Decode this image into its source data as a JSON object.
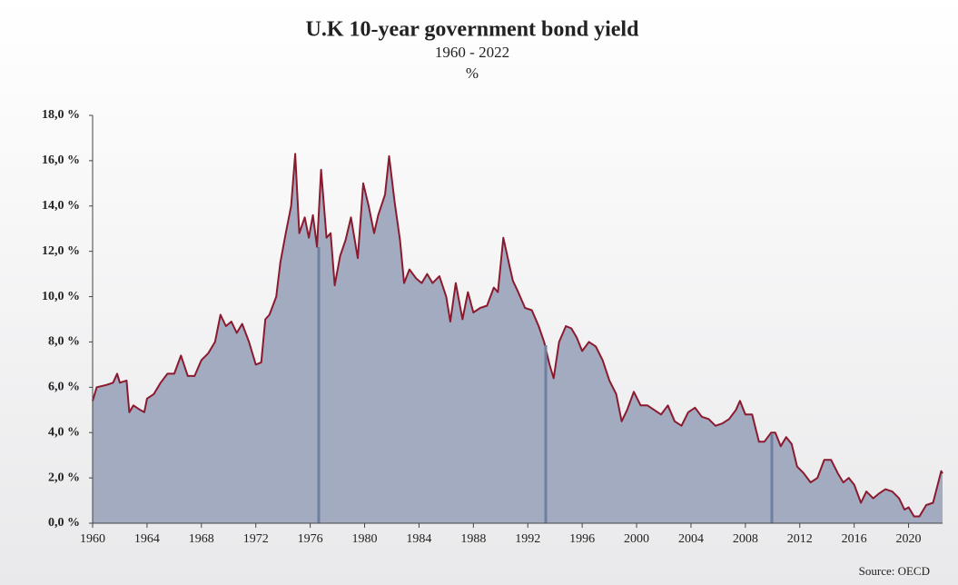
{
  "chart_data": {
    "type": "area",
    "title": "U.K 10-year government bond yield",
    "subtitle": "1960 - 2022",
    "unit": "%",
    "source": "Source: OECD",
    "color": "#8b1a2e",
    "fill": "#a2abc0",
    "x": [
      1960.0,
      1960.3,
      1961.0,
      1961.5,
      1961.8,
      1962.0,
      1962.5,
      1962.7,
      1963.0,
      1963.5,
      1963.8,
      1964.0,
      1964.5,
      1965.0,
      1965.5,
      1966.0,
      1966.5,
      1967.0,
      1967.5,
      1968.0,
      1968.5,
      1969.0,
      1969.4,
      1969.8,
      1970.2,
      1970.6,
      1971.0,
      1971.5,
      1972.0,
      1972.4,
      1972.7,
      1973.0,
      1973.5,
      1973.8,
      1974.2,
      1974.6,
      1974.9,
      1975.2,
      1975.6,
      1975.9,
      1976.2,
      1976.5,
      1976.8,
      1977.2,
      1977.5,
      1977.8,
      1978.2,
      1978.6,
      1979.0,
      1979.5,
      1979.9,
      1980.3,
      1980.7,
      1981.0,
      1981.5,
      1981.8,
      1982.2,
      1982.6,
      1982.9,
      1983.3,
      1983.8,
      1984.2,
      1984.6,
      1985.0,
      1985.5,
      1986.0,
      1986.3,
      1986.7,
      1987.2,
      1987.6,
      1988.0,
      1988.5,
      1989.0,
      1989.5,
      1989.8,
      1990.2,
      1990.6,
      1990.9,
      1991.3,
      1991.8,
      1992.3,
      1992.8,
      1993.2,
      1993.6,
      1993.9,
      1994.3,
      1994.8,
      1995.2,
      1995.6,
      1996.0,
      1996.5,
      1997.0,
      1997.5,
      1998.0,
      1998.5,
      1998.9,
      1999.3,
      1999.8,
      2000.3,
      2000.8,
      2001.3,
      2001.8,
      2002.3,
      2002.8,
      2003.3,
      2003.8,
      2004.3,
      2004.8,
      2005.3,
      2005.8,
      2006.3,
      2006.8,
      2007.3,
      2007.6,
      2008.0,
      2008.5,
      2009.0,
      2009.4,
      2009.9,
      2010.2,
      2010.6,
      2011.0,
      2011.4,
      2011.8,
      2012.3,
      2012.8,
      2013.3,
      2013.8,
      2014.3,
      2014.8,
      2015.2,
      2015.6,
      2016.0,
      2016.5,
      2016.9,
      2017.4,
      2017.8,
      2018.3,
      2018.8,
      2019.3,
      2019.7,
      2020.0,
      2020.4,
      2020.8,
      2021.3,
      2021.8,
      2022.1,
      2022.4,
      2022.5
    ],
    "values": [
      5.4,
      6.0,
      6.1,
      6.2,
      6.6,
      6.2,
      6.3,
      4.9,
      5.2,
      5.0,
      4.9,
      5.5,
      5.7,
      6.2,
      6.6,
      6.6,
      7.4,
      6.5,
      6.5,
      7.2,
      7.5,
      8.0,
      9.2,
      8.7,
      8.9,
      8.4,
      8.8,
      8.0,
      7.0,
      7.1,
      9.0,
      9.2,
      10.0,
      11.5,
      12.8,
      14.0,
      16.3,
      12.8,
      13.5,
      12.6,
      13.6,
      12.2,
      15.6,
      12.6,
      12.8,
      10.5,
      11.8,
      12.5,
      13.5,
      11.7,
      15.0,
      14.0,
      12.8,
      13.6,
      14.5,
      16.2,
      14.2,
      12.5,
      10.6,
      11.2,
      10.8,
      10.6,
      11.0,
      10.6,
      10.9,
      10.0,
      8.9,
      10.6,
      9.0,
      10.2,
      9.3,
      9.5,
      9.6,
      10.4,
      10.2,
      12.6,
      11.5,
      10.7,
      10.2,
      9.5,
      9.4,
      8.7,
      8.0,
      7.0,
      6.4,
      8.0,
      8.7,
      8.6,
      8.2,
      7.6,
      8.0,
      7.8,
      7.2,
      6.3,
      5.7,
      4.5,
      5.0,
      5.8,
      5.2,
      5.2,
      5.0,
      4.8,
      5.2,
      4.5,
      4.3,
      4.9,
      5.1,
      4.7,
      4.6,
      4.3,
      4.4,
      4.6,
      5.0,
      5.4,
      4.8,
      4.8,
      3.6,
      3.6,
      4.0,
      4.0,
      3.4,
      3.8,
      3.5,
      2.5,
      2.2,
      1.8,
      2.0,
      2.8,
      2.8,
      2.2,
      1.8,
      2.0,
      1.7,
      0.9,
      1.4,
      1.1,
      1.3,
      1.5,
      1.4,
      1.1,
      0.6,
      0.7,
      0.3,
      0.3,
      0.8,
      0.9,
      1.6,
      2.3,
      2.2
    ],
    "xlim": [
      1960,
      2022.5
    ],
    "xticks": [
      1960,
      1964,
      1968,
      1972,
      1976,
      1980,
      1984,
      1988,
      1992,
      1996,
      2000,
      2004,
      2008,
      2012,
      2016,
      2020
    ],
    "ylim": [
      0,
      18
    ],
    "yticks": [
      {
        "value": 0,
        "label": "0,0 %"
      },
      {
        "value": 2,
        "label": "2,0 %"
      },
      {
        "value": 4,
        "label": "4,0 %"
      },
      {
        "value": 6,
        "label": "6,0 %"
      },
      {
        "value": 8,
        "label": "8,0 %"
      },
      {
        "value": 10,
        "label": "10,0 %"
      },
      {
        "value": 12,
        "label": "12,0 %"
      },
      {
        "value": 14,
        "label": "14,0 %"
      },
      {
        "value": 16,
        "label": "16,0 %"
      },
      {
        "value": 18,
        "label": "18,0 %"
      }
    ]
  }
}
